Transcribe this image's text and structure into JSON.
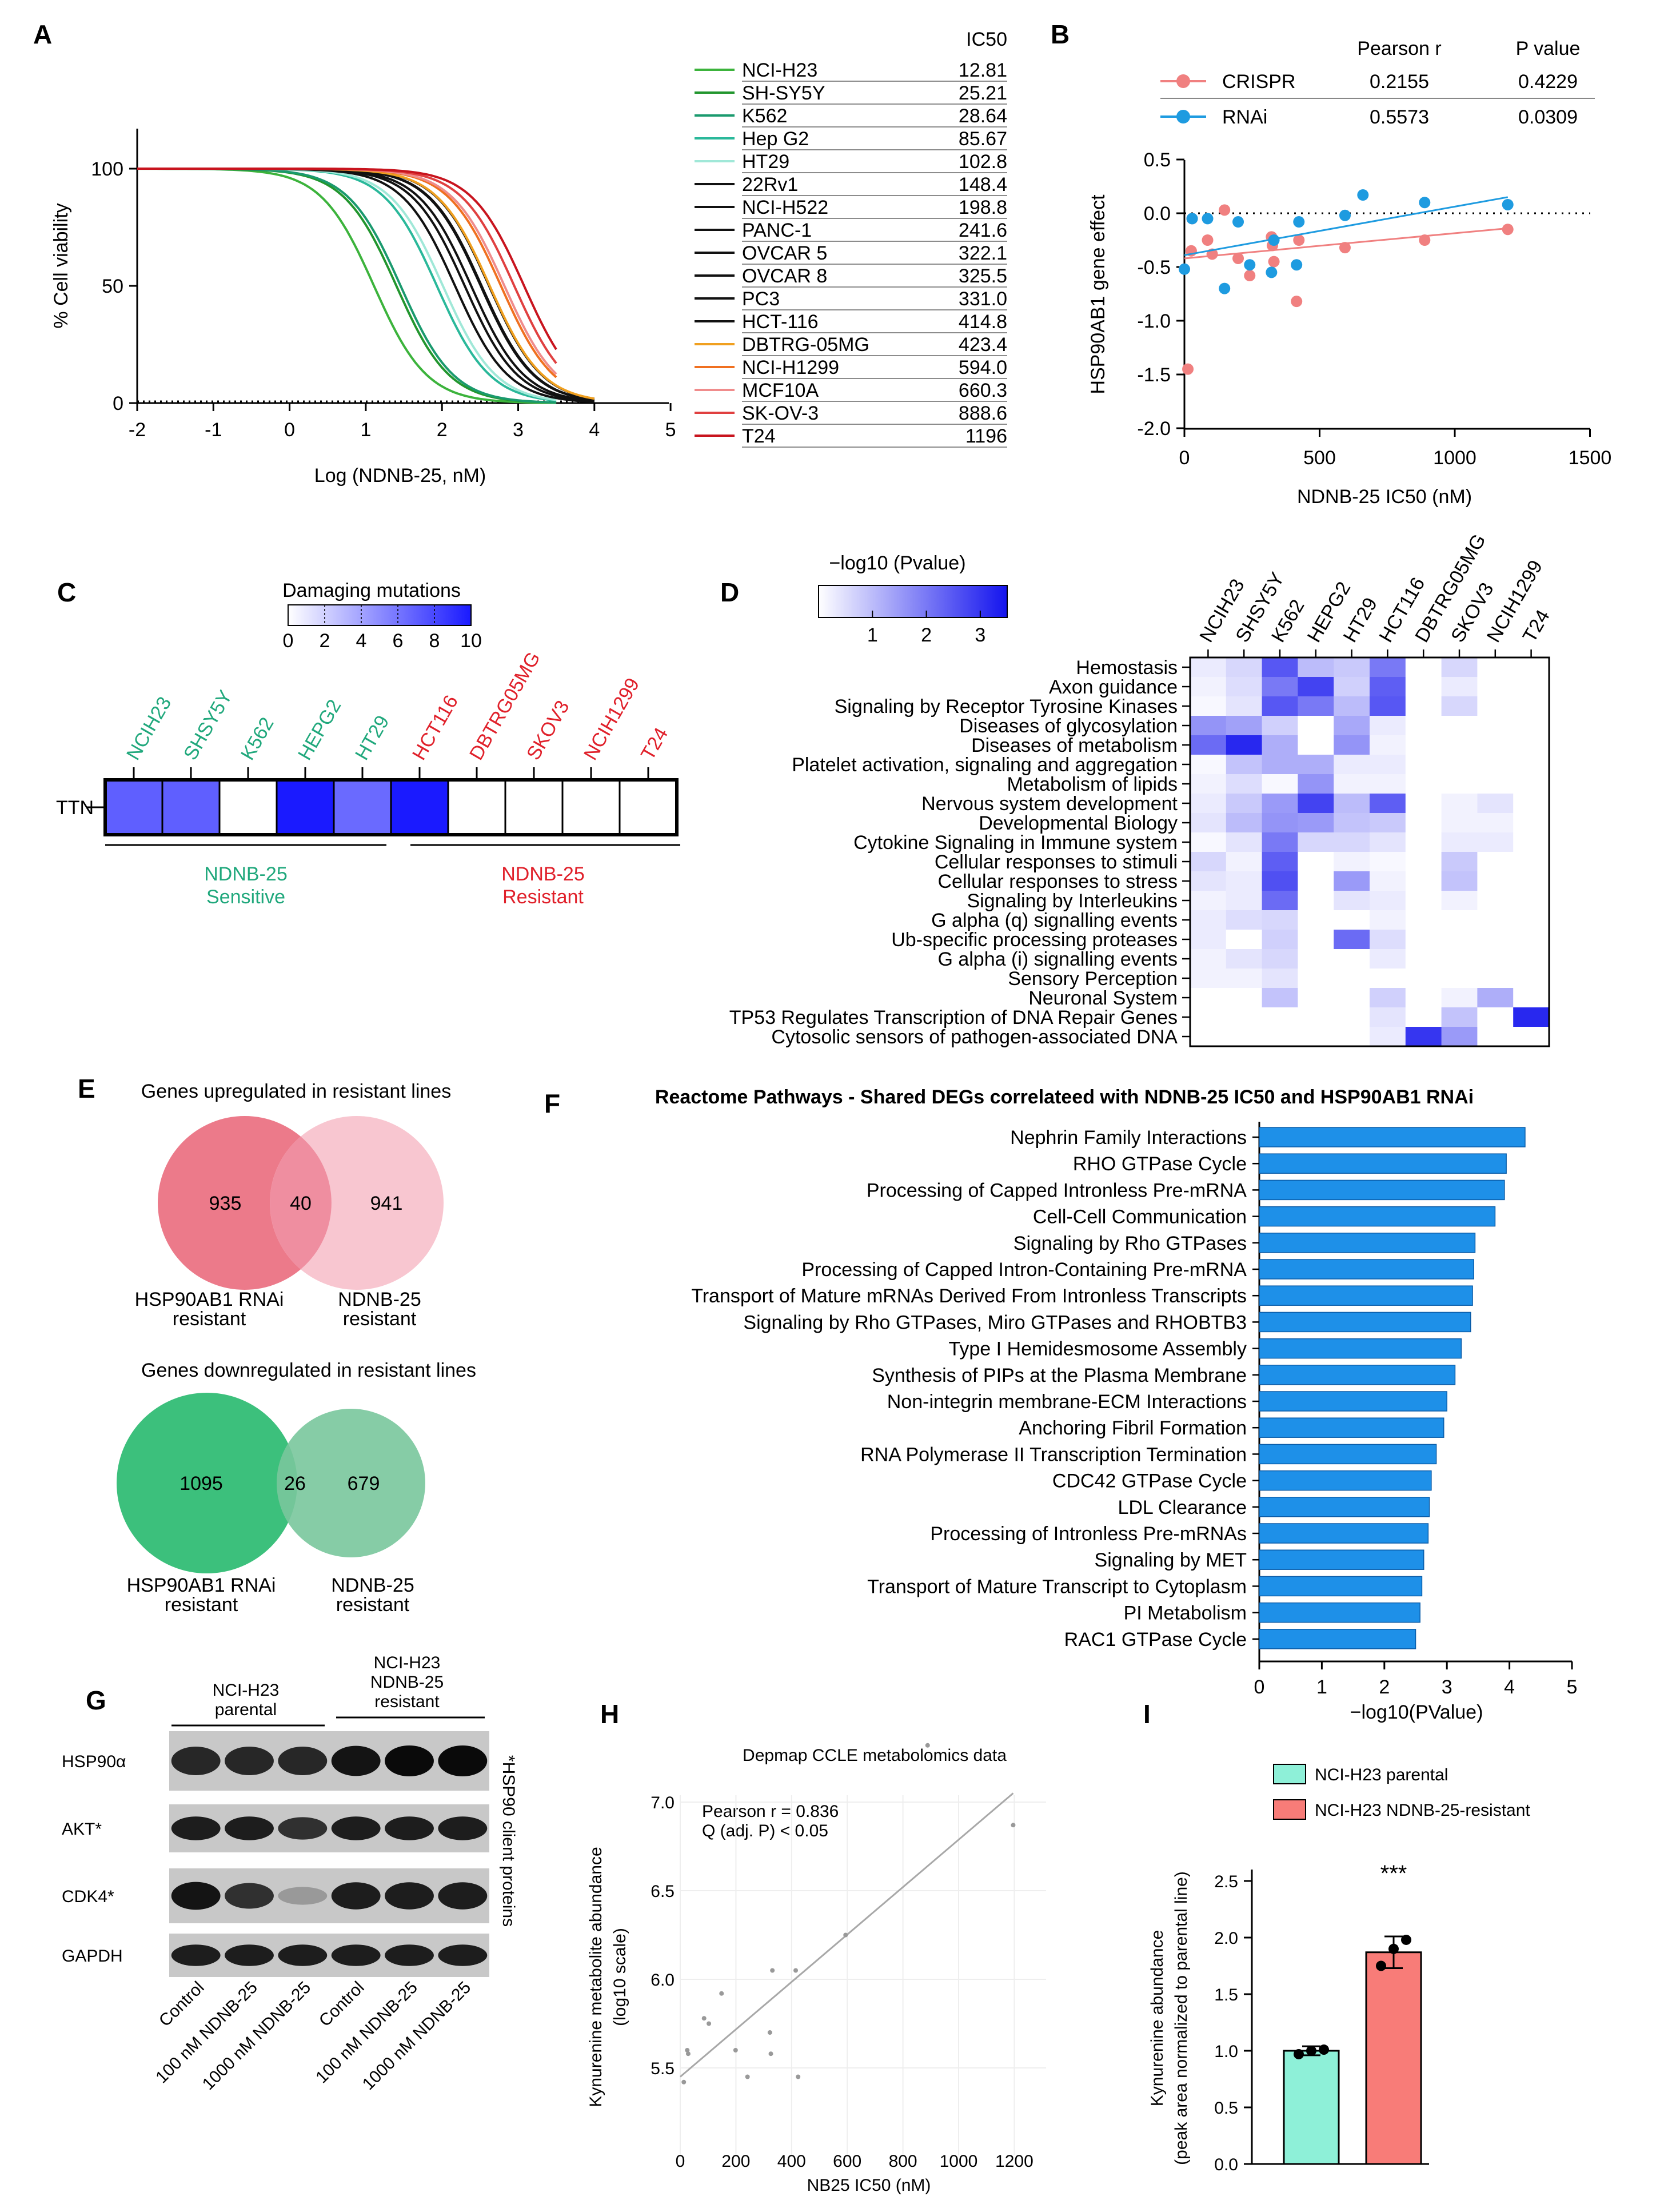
{
  "panels": {
    "A": {
      "label": "A",
      "xlabel": "Log (NDNB-25, nM)",
      "ylabel": "% Cell viability",
      "x_ticks": [
        "-2",
        "-1",
        "0",
        "1",
        "2",
        "3",
        "4",
        "5"
      ],
      "y_ticks": [
        "0",
        "50",
        "100"
      ],
      "legend_header": "IC50",
      "lines": [
        {
          "name": "NCI-H23",
          "ic50": "12.81",
          "color": "#3cb33c",
          "xmax": 3.5
        },
        {
          "name": "SH-SY5Y",
          "ic50": "25.21",
          "color": "#22962e",
          "xmax": 3.5
        },
        {
          "name": "K562",
          "ic50": "28.64",
          "color": "#1a9a6e",
          "xmax": 3.5
        },
        {
          "name": "Hep G2",
          "ic50": "85.67",
          "color": "#2ab89a",
          "xmax": 3.5
        },
        {
          "name": "HT29",
          "ic50": "102.8",
          "color": "#a0e8d8",
          "xmax": 3.5
        },
        {
          "name": "22Rv1",
          "ic50": "148.4",
          "color": "#111111",
          "xmax": 4
        },
        {
          "name": "NCI-H522",
          "ic50": "198.8",
          "color": "#111111",
          "xmax": 4
        },
        {
          "name": "PANC-1",
          "ic50": "241.6",
          "color": "#111111",
          "xmax": 4
        },
        {
          "name": "OVCAR 5",
          "ic50": "322.1",
          "color": "#111111",
          "xmax": 4
        },
        {
          "name": "OVCAR 8",
          "ic50": "325.5",
          "color": "#111111",
          "xmax": 4
        },
        {
          "name": "PC3",
          "ic50": "331.0",
          "color": "#111111",
          "xmax": 4
        },
        {
          "name": "HCT-116",
          "ic50": "414.8",
          "color": "#111111",
          "xmax": 4
        },
        {
          "name": "DBTRG-05MG",
          "ic50": "423.4",
          "color": "#f0a020",
          "xmax": 4
        },
        {
          "name": "NCI-H1299",
          "ic50": "594.0",
          "color": "#f07020",
          "xmax": 3.5
        },
        {
          "name": "MCF10A",
          "ic50": "660.3",
          "color": "#f08c8c",
          "xmax": 3.5
        },
        {
          "name": "SK-OV-3",
          "ic50": "888.6",
          "color": "#e04040",
          "xmax": 3.5
        },
        {
          "name": "T24",
          "ic50": "1196",
          "color": "#c8141e",
          "xmax": 3.5
        }
      ]
    },
    "B": {
      "label": "B",
      "xlabel": "NDNB-25 IC50 (nM)",
      "ylabel": "HSP90AB1 gene effect",
      "x_ticks": [
        "0",
        "500",
        "1000",
        "1500"
      ],
      "y_ticks": [
        "0.5",
        "0.0",
        "-0.5",
        "-1.0",
        "-1.5",
        "-2.0"
      ],
      "stats_header_r": "Pearson r",
      "stats_header_p": "P value",
      "series": [
        {
          "name": "CRISPR",
          "r": "0.2155",
          "p": "0.4229",
          "color": "#f08080",
          "points": [
            [
              12.81,
              -1.45
            ],
            [
              25.21,
              -0.35
            ],
            [
              28.64,
              -0.05
            ],
            [
              85.67,
              -0.25
            ],
            [
              102.8,
              -0.38
            ],
            [
              148.4,
              0.03
            ],
            [
              198.8,
              -0.42
            ],
            [
              241.6,
              -0.58
            ],
            [
              322.1,
              -0.22
            ],
            [
              325.5,
              -0.3
            ],
            [
              331.0,
              -0.45
            ],
            [
              414.8,
              -0.82
            ],
            [
              423.4,
              -0.25
            ],
            [
              594.0,
              -0.32
            ],
            [
              888.6,
              -0.25
            ],
            [
              1196,
              -0.15
            ]
          ],
          "fit": [
            [
              0,
              -0.42
            ],
            [
              1196,
              -0.14
            ]
          ]
        },
        {
          "name": "RNAi",
          "r": "0.5573",
          "p": "0.0309",
          "color": "#1e9be0",
          "points": [
            [
              0,
              -0.52
            ],
            [
              28.64,
              -0.05
            ],
            [
              85.67,
              -0.05
            ],
            [
              148.4,
              -0.7
            ],
            [
              198.8,
              -0.08
            ],
            [
              241.6,
              -0.48
            ],
            [
              322.1,
              -0.55
            ],
            [
              331.0,
              -0.25
            ],
            [
              414.8,
              -0.48
            ],
            [
              423.4,
              -0.08
            ],
            [
              594.0,
              -0.02
            ],
            [
              660.3,
              0.17
            ],
            [
              888.6,
              0.1
            ],
            [
              1196,
              0.08
            ]
          ],
          "fit": [
            [
              0,
              -0.39
            ],
            [
              1196,
              0.15
            ]
          ]
        }
      ]
    },
    "C": {
      "label": "C",
      "legend_title": "Damaging mutations",
      "legend_ticks": [
        "0",
        "2",
        "4",
        "6",
        "8",
        "10"
      ],
      "row_label": "TTN",
      "cells": [
        {
          "name": "NCIH23",
          "value": 7,
          "color": "#20a87c"
        },
        {
          "name": "SHSY5Y",
          "value": 7,
          "color": "#20a87c"
        },
        {
          "name": "K562",
          "value": 0,
          "color": "#20a87c"
        },
        {
          "name": "HEPG2",
          "value": 10,
          "color": "#20a87c"
        },
        {
          "name": "HT29",
          "value": 6.5,
          "color": "#20a87c"
        },
        {
          "name": "HCT116",
          "value": 10,
          "color": "#e0202a"
        },
        {
          "name": "DBTRG05MG",
          "value": 0,
          "color": "#e0202a"
        },
        {
          "name": "SKOV3",
          "value": 0,
          "color": "#e0202a"
        },
        {
          "name": "NCIH1299",
          "value": 0,
          "color": "#e0202a"
        },
        {
          "name": "T24",
          "value": 0,
          "color": "#e0202a"
        }
      ],
      "group_sensitive_1": "NDNB-25",
      "group_sensitive_2": "Sensitive",
      "group_resistant_1": "NDNB-25",
      "group_resistant_2": "Resistant",
      "sensitive_color": "#20a87c",
      "resistant_color": "#e0202a"
    },
    "D": {
      "label": "D",
      "legend_title": "−log10 (Pvalue)",
      "legend_ticks": [
        "1",
        "2",
        "3"
      ],
      "columns": [
        "NCIH23",
        "SHSY5Y",
        "K562",
        "HEPG2",
        "HT29",
        "HCT116",
        "DBTRG05MG",
        "SKOV3",
        "NCIH1299",
        "T24"
      ],
      "rows": [
        {
          "name": "Hemostasis",
          "values": [
            0.3,
            0.6,
            2.5,
            1.0,
            0.8,
            2.0,
            0,
            0.6,
            0,
            0
          ]
        },
        {
          "name": "Axon guidance",
          "values": [
            0.2,
            0.5,
            2.0,
            2.8,
            0.7,
            2.4,
            0,
            0.3,
            0,
            0
          ]
        },
        {
          "name": "Signaling by Receptor Tyrosine Kinases",
          "values": [
            0.1,
            0.4,
            2.5,
            2.0,
            1.0,
            2.5,
            0,
            0.6,
            0,
            0
          ]
        },
        {
          "name": "Diseases of glycosylation",
          "values": [
            1.6,
            1.4,
            0.7,
            0,
            1.3,
            0.3,
            0,
            0,
            0,
            0
          ]
        },
        {
          "name": "Diseases of metabolism",
          "values": [
            2.2,
            3.2,
            1.2,
            0,
            1.6,
            0.2,
            0,
            0,
            0,
            0
          ]
        },
        {
          "name": "Platelet activation, signaling and aggregation",
          "values": [
            0.1,
            0.9,
            1.2,
            1.2,
            0.3,
            0.3,
            0,
            0,
            0,
            0
          ]
        },
        {
          "name": "Metabolism of lipids",
          "values": [
            0.2,
            0.5,
            0.1,
            1.6,
            0.2,
            0.2,
            0,
            0,
            0,
            0
          ]
        },
        {
          "name": "Nervous system development",
          "values": [
            0.3,
            0.8,
            1.5,
            2.8,
            1.0,
            2.4,
            0,
            0.2,
            0.4,
            0
          ]
        },
        {
          "name": "Developmental Biology",
          "values": [
            0.4,
            1.0,
            1.6,
            1.5,
            0.9,
            0.8,
            0,
            0.2,
            0.2,
            0
          ]
        },
        {
          "name": "Cytokine Signaling in Immune system",
          "values": [
            0.1,
            0.4,
            2.0,
            0.6,
            0.6,
            0.4,
            0,
            0.3,
            0.3,
            0
          ]
        },
        {
          "name": "Cellular responses to stimuli",
          "values": [
            0.6,
            0.2,
            2.4,
            0,
            0.2,
            0.1,
            0,
            0.8,
            0,
            0
          ]
        },
        {
          "name": "Cellular responses to stress",
          "values": [
            0.4,
            0.3,
            2.6,
            0,
            1.5,
            0.2,
            0,
            0.9,
            0,
            0
          ]
        },
        {
          "name": "Signaling by Interleukins",
          "values": [
            0.2,
            0.3,
            2.2,
            0,
            0.4,
            0.3,
            0,
            0.2,
            0,
            0
          ]
        },
        {
          "name": "G alpha (q) signalling events",
          "values": [
            0.3,
            0.5,
            0.6,
            0,
            0,
            0.2,
            0,
            0,
            0,
            0
          ]
        },
        {
          "name": "Ub-specific processing proteases",
          "values": [
            0.3,
            0,
            0.7,
            0,
            2.2,
            0.5,
            0,
            0,
            0,
            0
          ]
        },
        {
          "name": "G alpha (i) signalling events",
          "values": [
            0.2,
            0.4,
            0.6,
            0,
            0,
            0.3,
            0,
            0,
            0,
            0
          ]
        },
        {
          "name": "Sensory Perception",
          "values": [
            0.2,
            0.2,
            0.4,
            0,
            0,
            0,
            0,
            0,
            0,
            0
          ]
        },
        {
          "name": "Neuronal System",
          "values": [
            0,
            0,
            0.9,
            0,
            0,
            0.7,
            0,
            0.2,
            1.2,
            0
          ]
        },
        {
          "name": "TP53 Regulates Transcription of DNA Repair Genes",
          "values": [
            0,
            0,
            0,
            0,
            0,
            0.4,
            0,
            0.9,
            0,
            3.2
          ]
        },
        {
          "name": "Cytosolic sensors of pathogen-associated DNA",
          "values": [
            0,
            0,
            0,
            0,
            0,
            0.3,
            3.0,
            1.5,
            0,
            0
          ]
        }
      ]
    },
    "E": {
      "label": "E",
      "up_title": "Genes upregulated in resistant lines",
      "up_left": "935",
      "up_mid": "40",
      "up_right": "941",
      "down_title": "Genes downregulated in resistant lines",
      "down_left": "1095",
      "down_mid": "26",
      "down_right": "679",
      "label_left_1": "HSP90AB1 RNAi",
      "label_left_2": "resistant",
      "label_right_1": "NDNB-25",
      "label_right_2": "resistant",
      "up_colors": [
        "#ec7a8a",
        "#f7bcc8"
      ],
      "down_colors": [
        "#3cc07c",
        "#79c79c"
      ]
    },
    "F": {
      "label": "F",
      "title": "Reactome Pathways - Shared DEGs correlateed with NDNB-25 IC50 and HSP90AB1 RNAi",
      "xlabel": "−log10(PValue)",
      "x_ticks": [
        "0",
        "1",
        "2",
        "3",
        "4",
        "5"
      ],
      "bar_color": "#1e90e8",
      "bars": [
        {
          "name": "Nephrin Family Interactions",
          "value": 4.25
        },
        {
          "name": "RHO GTPase Cycle",
          "value": 3.95
        },
        {
          "name": "Processing of Capped Intronless Pre-mRNA",
          "value": 3.92
        },
        {
          "name": "Cell-Cell Communication",
          "value": 3.77
        },
        {
          "name": "Signaling by Rho GTPases",
          "value": 3.45
        },
        {
          "name": "Processing of Capped Intron-Containing Pre-mRNA",
          "value": 3.43
        },
        {
          "name": "Transport of Mature mRNAs Derived From Intronless Transcripts",
          "value": 3.41
        },
        {
          "name": "Signaling by Rho GTPases, Miro GTPases and RHOBTB3",
          "value": 3.38
        },
        {
          "name": "Type I Hemidesmosome Assembly",
          "value": 3.23
        },
        {
          "name": "Synthesis of PIPs at the Plasma Membrane",
          "value": 3.13
        },
        {
          "name": "Non-integrin membrane-ECM Interactions",
          "value": 3.0
        },
        {
          "name": "Anchoring Fibril Formation",
          "value": 2.95
        },
        {
          "name": "RNA Polymerase II Transcription Termination",
          "value": 2.83
        },
        {
          "name": "CDC42 GTPase Cycle",
          "value": 2.75
        },
        {
          "name": "LDL Clearance",
          "value": 2.72
        },
        {
          "name": "Processing of Intronless Pre-mRNAs",
          "value": 2.7
        },
        {
          "name": "Signaling by MET",
          "value": 2.63
        },
        {
          "name": "Transport of Mature Transcript to Cytoplasm",
          "value": 2.6
        },
        {
          "name": "PI Metabolism",
          "value": 2.57
        },
        {
          "name": "RAC1 GTPase Cycle",
          "value": 2.5
        }
      ]
    },
    "G": {
      "label": "G",
      "group1": "NCI-H23",
      "group1_sub": "parental",
      "group2": "NCI-H23",
      "group2_sub1": "NDNB-25",
      "group2_sub2": "resistant",
      "proteins": [
        "HSP90α",
        "AKT*",
        "CDK4*",
        "GAPDH"
      ],
      "side_note": "*HSP90 client proteins",
      "lanes": [
        "Control",
        "100 nM NDNB-25",
        "1000 nM NDNB-25",
        "Control",
        "100 nM NDNB-25",
        "1000 nM NDNB-25"
      ],
      "band_intensity": [
        [
          0.85,
          0.85,
          0.85,
          0.95,
          1.0,
          1.0
        ],
        [
          0.9,
          0.9,
          0.8,
          0.9,
          0.9,
          0.9
        ],
        [
          0.95,
          0.8,
          0.25,
          0.9,
          0.9,
          0.9
        ],
        [
          0.9,
          0.9,
          0.9,
          0.9,
          0.9,
          0.9
        ]
      ]
    },
    "H": {
      "label": "H",
      "title": "Depmap  CCLE metabolomics data",
      "stat1": "Pearson r = 0.836",
      "stat2": "Q (adj. P) < 0.05",
      "xlabel": "NB25 IC50 (nM)",
      "ylabel1": "Kynurenine metabolite abundance",
      "ylabel2": "(log10 scale)",
      "x_ticks": [
        "0",
        "200",
        "400",
        "600",
        "800",
        "1000",
        "1200"
      ],
      "y_ticks": [
        "5.5",
        "6.0",
        "6.5",
        "7.0"
      ],
      "points": [
        [
          12.81,
          5.42
        ],
        [
          25.21,
          5.6
        ],
        [
          28.64,
          5.58
        ],
        [
          85.67,
          5.78
        ],
        [
          102.8,
          5.75
        ],
        [
          148.4,
          5.92
        ],
        [
          198.8,
          5.6
        ],
        [
          241.6,
          5.45
        ],
        [
          322.1,
          5.7
        ],
        [
          325.5,
          5.58
        ],
        [
          331.0,
          6.05
        ],
        [
          414.8,
          6.05
        ],
        [
          423.4,
          5.45
        ],
        [
          594.0,
          6.25
        ],
        [
          888.6,
          7.32
        ],
        [
          1196,
          6.87
        ]
      ],
      "fit": [
        [
          0,
          5.45
        ],
        [
          1196,
          7.05
        ]
      ]
    },
    "I": {
      "label": "I",
      "legend_1": "NCI-H23 parental",
      "legend_2": "NCI-H23 NDNB-25-resistant",
      "ylabel1": "Kynurenine abundance",
      "ylabel2": "(peak area normalized to parental line)",
      "y_ticks": [
        "0.0",
        "0.5",
        "1.0",
        "1.5",
        "2.0",
        "2.5"
      ],
      "significance": "***",
      "bars": [
        {
          "value": 1.0,
          "err": 0.04,
          "points": [
            0.97,
            1.0,
            1.01
          ],
          "color": "#8ef0d8"
        },
        {
          "value": 1.87,
          "err": 0.14,
          "points": [
            1.75,
            1.9,
            1.98
          ],
          "color": "#f87c78"
        }
      ]
    }
  }
}
